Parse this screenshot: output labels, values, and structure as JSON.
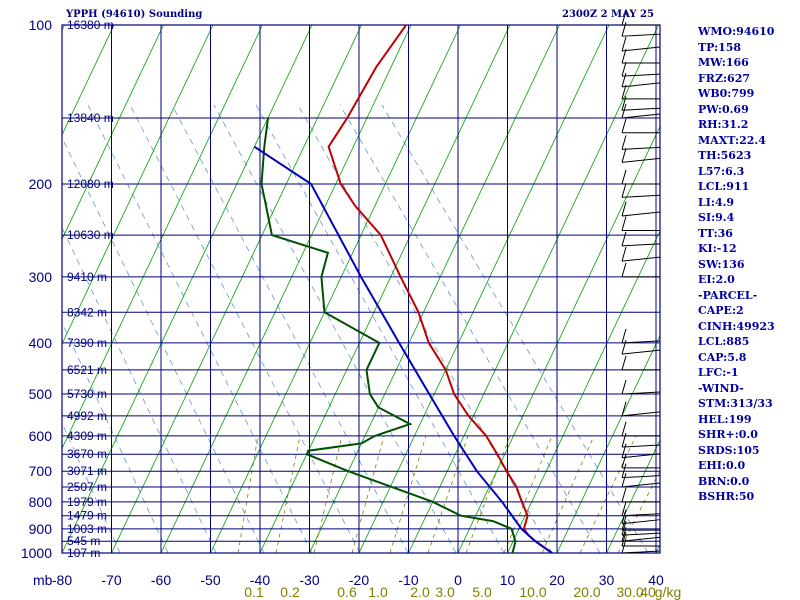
{
  "header": {
    "station": "YPPH (94610) Sounding",
    "time": "2300Z  2 MAY 25"
  },
  "indices": [
    "WMO:94610",
    "TP:158",
    "MW:166",
    "FRZ:627",
    "WB0:799",
    "PW:0.69",
    "RH:31.2",
    "MAXT:22.4",
    "TH:5623",
    "L57:6.3",
    "LCL:911",
    "LI:4.9",
    "SI:9.4",
    "TT:36",
    "KI:-12",
    "SW:136",
    "EI:2.0",
    "-PARCEL-",
    "CAPE:2",
    "CINH:49923",
    "LCL:885",
    "CAP:5.8",
    "LFC:-1",
    "-WIND-",
    "STM:313/33",
    "HEL:199",
    "SHR+:0.0",
    "SRDS:105",
    "EHI:0.0",
    "BRN:0.0",
    "BSHR:50"
  ],
  "colors": {
    "grid": "#000080",
    "isotherm": "#00a000",
    "mixing_ratio": "#808000",
    "temp": "#c00000",
    "dewpoint": "#005000",
    "parcel": "#0000c0",
    "wind": "#000000",
    "moist_adiabat": "#6699cc"
  },
  "chart_data": {
    "type": "line",
    "title": "",
    "ylabel": "mb",
    "xlabel": "",
    "pressure_levels": [
      100,
      200,
      300,
      400,
      500,
      600,
      700,
      800,
      900,
      1000
    ],
    "xlim": [
      -80,
      10
    ],
    "temperature_ticks": [
      -80,
      -70,
      -60,
      -50,
      -40,
      -30,
      -20,
      -10,
      0,
      10,
      20,
      30,
      40
    ],
    "mixing_ratio_ticks": [
      "0.1",
      "0.2",
      "0.6",
      "1.0",
      "2.0",
      "3.0",
      "5.0",
      "10.0",
      "20.0",
      "30.0",
      "40"
    ],
    "mixing_ratio_unit": "g/kg",
    "height_labels": [
      {
        "p": 100,
        "label": "16380 m"
      },
      {
        "p": 150,
        "label": "13840 m"
      },
      {
        "p": 200,
        "label": "12080 m"
      },
      {
        "p": 250,
        "label": "10630 m"
      },
      {
        "p": 300,
        "label": "9410 m"
      },
      {
        "p": 350,
        "label": "8342 m"
      },
      {
        "p": 400,
        "label": "7390 m"
      },
      {
        "p": 450,
        "label": "6521 m"
      },
      {
        "p": 500,
        "label": "5730 m"
      },
      {
        "p": 550,
        "label": "4992 m"
      },
      {
        "p": 600,
        "label": "4309 m"
      },
      {
        "p": 650,
        "label": "3670 m"
      },
      {
        "p": 700,
        "label": "3071 m"
      },
      {
        "p": 750,
        "label": "2507 m"
      },
      {
        "p": 800,
        "label": "1979 m"
      },
      {
        "p": 850,
        "label": "1479 m"
      },
      {
        "p": 900,
        "label": "1003 m"
      },
      {
        "p": 950,
        "label": "545 m"
      },
      {
        "p": 1000,
        "label": "107 m"
      }
    ],
    "series": [
      {
        "key": "temp",
        "values": [
          [
            1000,
            19
          ],
          [
            950,
            14.5
          ],
          [
            925,
            12.5
          ],
          [
            900,
            11
          ],
          [
            850,
            10.5
          ],
          [
            800,
            8
          ],
          [
            750,
            5.5
          ],
          [
            700,
            2
          ],
          [
            650,
            -1.5
          ],
          [
            600,
            -5.5
          ],
          [
            550,
            -11
          ],
          [
            500,
            -16
          ],
          [
            450,
            -20
          ],
          [
            400,
            -26
          ],
          [
            350,
            -31
          ],
          [
            300,
            -38
          ],
          [
            250,
            -46
          ],
          [
            220,
            -54
          ],
          [
            200,
            -59
          ],
          [
            170,
            -65
          ],
          [
            150,
            -64
          ],
          [
            120,
            -63
          ],
          [
            100,
            -61
          ]
        ]
      },
      {
        "key": "dewpoint",
        "values": [
          [
            1000,
            11
          ],
          [
            950,
            10.5
          ],
          [
            925,
            9.5
          ],
          [
            900,
            8.5
          ],
          [
            870,
            4
          ],
          [
            850,
            -3
          ],
          [
            800,
            -10
          ],
          [
            700,
            -30
          ],
          [
            650,
            -40
          ],
          [
            640,
            -40
          ],
          [
            620,
            -30
          ],
          [
            600,
            -28
          ],
          [
            570,
            -22
          ],
          [
            530,
            -30
          ],
          [
            500,
            -33
          ],
          [
            450,
            -36
          ],
          [
            400,
            -36
          ],
          [
            350,
            -50
          ],
          [
            300,
            -54
          ],
          [
            270,
            -55
          ],
          [
            250,
            -68
          ],
          [
            220,
            -72
          ],
          [
            200,
            -75
          ],
          [
            170,
            -78
          ],
          [
            150,
            -80
          ]
        ]
      },
      {
        "key": "parcel",
        "values": [
          [
            1000,
            19
          ],
          [
            950,
            14.5
          ],
          [
            900,
            10.5
          ],
          [
            800,
            4
          ],
          [
            700,
            -4
          ],
          [
            600,
            -12
          ],
          [
            500,
            -21
          ],
          [
            400,
            -32
          ],
          [
            300,
            -46
          ],
          [
            200,
            -65
          ],
          [
            170,
            -80
          ]
        ]
      }
    ],
    "wind_pressures": [
      100,
      105,
      112,
      118,
      125,
      131,
      138,
      145,
      150,
      160,
      172,
      182,
      200,
      212,
      230,
      245,
      262,
      280,
      300,
      400,
      420,
      450,
      500,
      550,
      600,
      630,
      660,
      690,
      720,
      750,
      800,
      850,
      880,
      905,
      925,
      950,
      970,
      1000
    ]
  }
}
